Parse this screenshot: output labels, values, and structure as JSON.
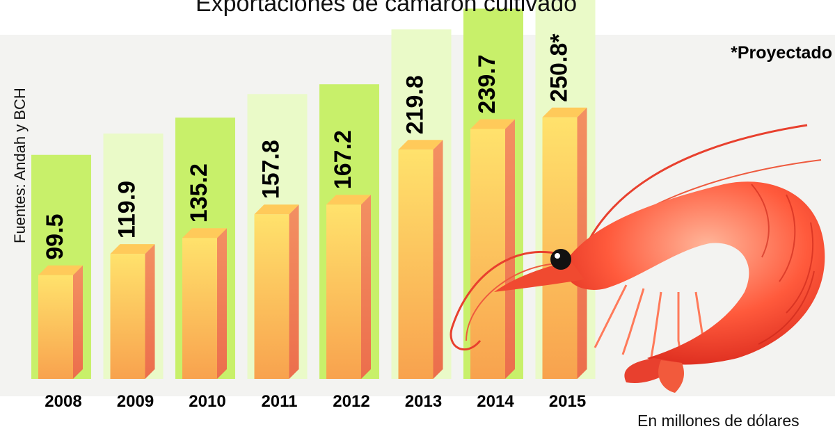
{
  "chart_data": {
    "type": "bar",
    "title": "Exportaciones de camarón cultivado",
    "source": "Fuentes: Andah y BCH",
    "note": "*Proyectado",
    "units": "En millones de dólares",
    "categories": [
      "2008",
      "2009",
      "2010",
      "2011",
      "2012",
      "2013",
      "2014",
      "2015"
    ],
    "values": [
      99.5,
      119.9,
      135.2,
      157.8,
      167.2,
      219.8,
      239.7,
      250.8
    ],
    "value_labels": [
      "99.5",
      "119.9",
      "135.2",
      "157.8",
      "167.2",
      "219.8",
      "239.7",
      "250.8*"
    ],
    "projected": [
      false,
      false,
      false,
      false,
      false,
      false,
      false,
      true
    ],
    "colors": {
      "bar_front_top": "#ffe06a",
      "bar_front_bottom": "#f8a050",
      "bar_side": "#ee7c52",
      "bar_top": "#ffca5a",
      "label_panel_light": "#eafac8",
      "label_panel_strong": "#c8f06a"
    }
  },
  "decor": {
    "illustration": "shrimp-illustration"
  }
}
